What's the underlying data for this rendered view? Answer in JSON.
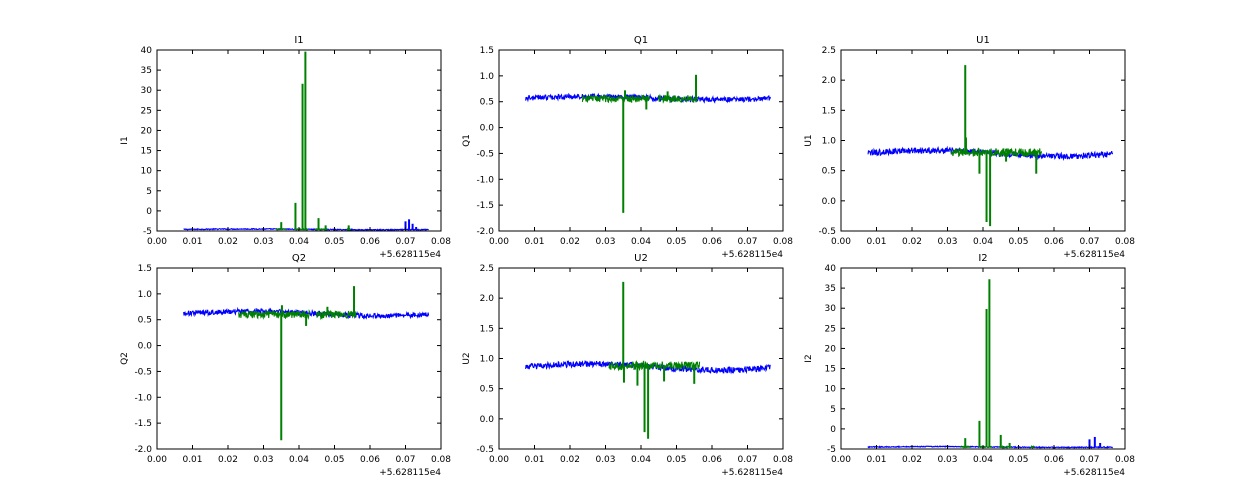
{
  "chart_data": [
    {
      "type": "line",
      "title": "I1",
      "xlabel": "",
      "ylabel": "I1",
      "x_offset_label": "+5.628115e4",
      "xlim": [
        0.0,
        0.08
      ],
      "ylim": [
        -5,
        40
      ],
      "xticks": [
        "0.00",
        "0.01",
        "0.02",
        "0.03",
        "0.04",
        "0.05",
        "0.06",
        "0.07",
        "0.08"
      ],
      "yticks": [
        "-5",
        "0",
        "5",
        "10",
        "15",
        "20",
        "25",
        "30",
        "35",
        "40"
      ],
      "series": [
        {
          "color": "#0000ff",
          "kind": "noisy-band",
          "x_range": [
            0.0075,
            0.0765
          ],
          "base": -4.6,
          "noise": 0.12,
          "wave": 0.1,
          "spikes": [
            [
              0.07,
              -2.6
            ],
            [
              0.071,
              -2.1
            ],
            [
              0.072,
              -3.2
            ],
            [
              0.073,
              -4.0
            ]
          ]
        },
        {
          "color": "#008000",
          "kind": "segments",
          "base": -4.6,
          "noise": 0.15,
          "segments": [
            [
              0.0335,
              0.0365
            ],
            [
              0.039,
              0.0425
            ],
            [
              0.0445,
              0.048
            ],
            [
              0.0535,
              0.0545
            ]
          ],
          "spikes": [
            [
              0.035,
              -2.8
            ],
            [
              0.039,
              2.0
            ],
            [
              0.041,
              31.6
            ],
            [
              0.0418,
              39.6
            ],
            [
              0.0455,
              -1.8
            ],
            [
              0.0475,
              -3.6
            ],
            [
              0.054,
              -3.6
            ]
          ]
        }
      ]
    },
    {
      "type": "line",
      "title": "Q1",
      "xlabel": "",
      "ylabel": "Q1",
      "x_offset_label": "+5.628115e4",
      "xlim": [
        0.0,
        0.08
      ],
      "ylim": [
        -2.0,
        1.5
      ],
      "xticks": [
        "0.00",
        "0.01",
        "0.02",
        "0.03",
        "0.04",
        "0.05",
        "0.06",
        "0.07",
        "0.08"
      ],
      "yticks": [
        "-2.0",
        "-1.5",
        "-1.0",
        "-0.5",
        "0.0",
        "0.5",
        "1.0",
        "1.5"
      ],
      "series": [
        {
          "color": "#0000ff",
          "kind": "noisy-band",
          "x_range": [
            0.0075,
            0.0765
          ],
          "base": 0.57,
          "noise": 0.05,
          "wave": 0.03,
          "spikes": []
        },
        {
          "color": "#008000",
          "kind": "segments",
          "base": 0.56,
          "noise": 0.07,
          "segments": [
            [
              0.0235,
              0.0425
            ],
            [
              0.045,
              0.056
            ]
          ],
          "spikes": [
            [
              0.035,
              -1.65
            ],
            [
              0.0355,
              0.72
            ],
            [
              0.0415,
              0.35
            ],
            [
              0.0475,
              0.7
            ],
            [
              0.0555,
              1.02
            ]
          ]
        }
      ]
    },
    {
      "type": "line",
      "title": "U1",
      "xlabel": "",
      "ylabel": "U1",
      "x_offset_label": "+5.628115e4",
      "xlim": [
        0.0,
        0.08
      ],
      "ylim": [
        -0.5,
        2.5
      ],
      "xticks": [
        "0.00",
        "0.01",
        "0.02",
        "0.03",
        "0.04",
        "0.05",
        "0.06",
        "0.07",
        "0.08"
      ],
      "yticks": [
        "-0.5",
        "0.0",
        "0.5",
        "1.0",
        "1.5",
        "2.0",
        "2.5"
      ],
      "series": [
        {
          "color": "#0000ff",
          "kind": "noisy-band",
          "x_range": [
            0.0075,
            0.0765
          ],
          "base": 0.79,
          "noise": 0.05,
          "wave": 0.05,
          "spikes": []
        },
        {
          "color": "#008000",
          "kind": "segments",
          "base": 0.8,
          "noise": 0.07,
          "segments": [
            [
              0.031,
              0.0565
            ]
          ],
          "spikes": [
            [
              0.035,
              2.25
            ],
            [
              0.0352,
              1.05
            ],
            [
              0.039,
              0.45
            ],
            [
              0.041,
              -0.35
            ],
            [
              0.042,
              -0.42
            ],
            [
              0.0465,
              0.65
            ],
            [
              0.055,
              0.45
            ]
          ]
        }
      ]
    },
    {
      "type": "line",
      "title": "Q2",
      "xlabel": "",
      "ylabel": "Q2",
      "x_offset_label": "+5.628115e4",
      "xlim": [
        0.0,
        0.08
      ],
      "ylim": [
        -2.0,
        1.5
      ],
      "xticks": [
        "0.00",
        "0.01",
        "0.02",
        "0.03",
        "0.04",
        "0.05",
        "0.06",
        "0.07",
        "0.08"
      ],
      "yticks": [
        "-2.0",
        "-1.5",
        "-1.0",
        "-0.5",
        "0.0",
        "0.5",
        "1.0",
        "1.5"
      ],
      "series": [
        {
          "color": "#0000ff",
          "kind": "noisy-band",
          "x_range": [
            0.0075,
            0.0765
          ],
          "base": 0.62,
          "noise": 0.05,
          "wave": 0.04,
          "spikes": []
        },
        {
          "color": "#008000",
          "kind": "segments",
          "base": 0.6,
          "noise": 0.07,
          "segments": [
            [
              0.023,
              0.043
            ],
            [
              0.045,
              0.056
            ]
          ],
          "spikes": [
            [
              0.035,
              -1.83
            ],
            [
              0.0352,
              0.78
            ],
            [
              0.042,
              0.38
            ],
            [
              0.048,
              0.75
            ],
            [
              0.0555,
              1.15
            ]
          ]
        }
      ]
    },
    {
      "type": "line",
      "title": "U2",
      "xlabel": "",
      "ylabel": "U2",
      "x_offset_label": "+5.628115e4",
      "xlim": [
        0.0,
        0.08
      ],
      "ylim": [
        -0.5,
        2.5
      ],
      "xticks": [
        "0.00",
        "0.01",
        "0.02",
        "0.03",
        "0.04",
        "0.05",
        "0.06",
        "0.07",
        "0.08"
      ],
      "yticks": [
        "-0.5",
        "0.0",
        "0.5",
        "1.0",
        "1.5",
        "2.0",
        "2.5"
      ],
      "series": [
        {
          "color": "#0000ff",
          "kind": "noisy-band",
          "x_range": [
            0.0075,
            0.0765
          ],
          "base": 0.86,
          "noise": 0.05,
          "wave": 0.05,
          "spikes": []
        },
        {
          "color": "#008000",
          "kind": "segments",
          "base": 0.88,
          "noise": 0.07,
          "segments": [
            [
              0.031,
              0.0565
            ]
          ],
          "spikes": [
            [
              0.035,
              2.27
            ],
            [
              0.0352,
              0.6
            ],
            [
              0.039,
              0.55
            ],
            [
              0.041,
              -0.22
            ],
            [
              0.042,
              -0.33
            ],
            [
              0.0465,
              0.62
            ],
            [
              0.055,
              0.58
            ]
          ]
        }
      ]
    },
    {
      "type": "line",
      "title": "I2",
      "xlabel": "",
      "ylabel": "I2",
      "x_offset_label": "+5.628115e4",
      "xlim": [
        0.0,
        0.08
      ],
      "ylim": [
        -5,
        40
      ],
      "xticks": [
        "0.00",
        "0.01",
        "0.02",
        "0.03",
        "0.04",
        "0.05",
        "0.06",
        "0.07",
        "0.08"
      ],
      "yticks": [
        "-5",
        "0",
        "5",
        "10",
        "15",
        "20",
        "25",
        "30",
        "35",
        "40"
      ],
      "series": [
        {
          "color": "#0000ff",
          "kind": "noisy-band",
          "x_range": [
            0.0075,
            0.0765
          ],
          "base": -4.5,
          "noise": 0.12,
          "wave": 0.1,
          "spikes": [
            [
              0.07,
              -2.6
            ],
            [
              0.0715,
              -2.0
            ],
            [
              0.073,
              -3.5
            ]
          ]
        },
        {
          "color": "#008000",
          "kind": "segments",
          "base": -4.5,
          "noise": 0.15,
          "segments": [
            [
              0.0335,
              0.0365
            ],
            [
              0.039,
              0.0425
            ],
            [
              0.0445,
              0.048
            ],
            [
              0.0535,
              0.0545
            ]
          ],
          "spikes": [
            [
              0.035,
              -2.3
            ],
            [
              0.039,
              2.0
            ],
            [
              0.041,
              29.8
            ],
            [
              0.0418,
              37.2
            ],
            [
              0.045,
              -1.5
            ],
            [
              0.0475,
              -3.5
            ]
          ]
        }
      ]
    }
  ]
}
